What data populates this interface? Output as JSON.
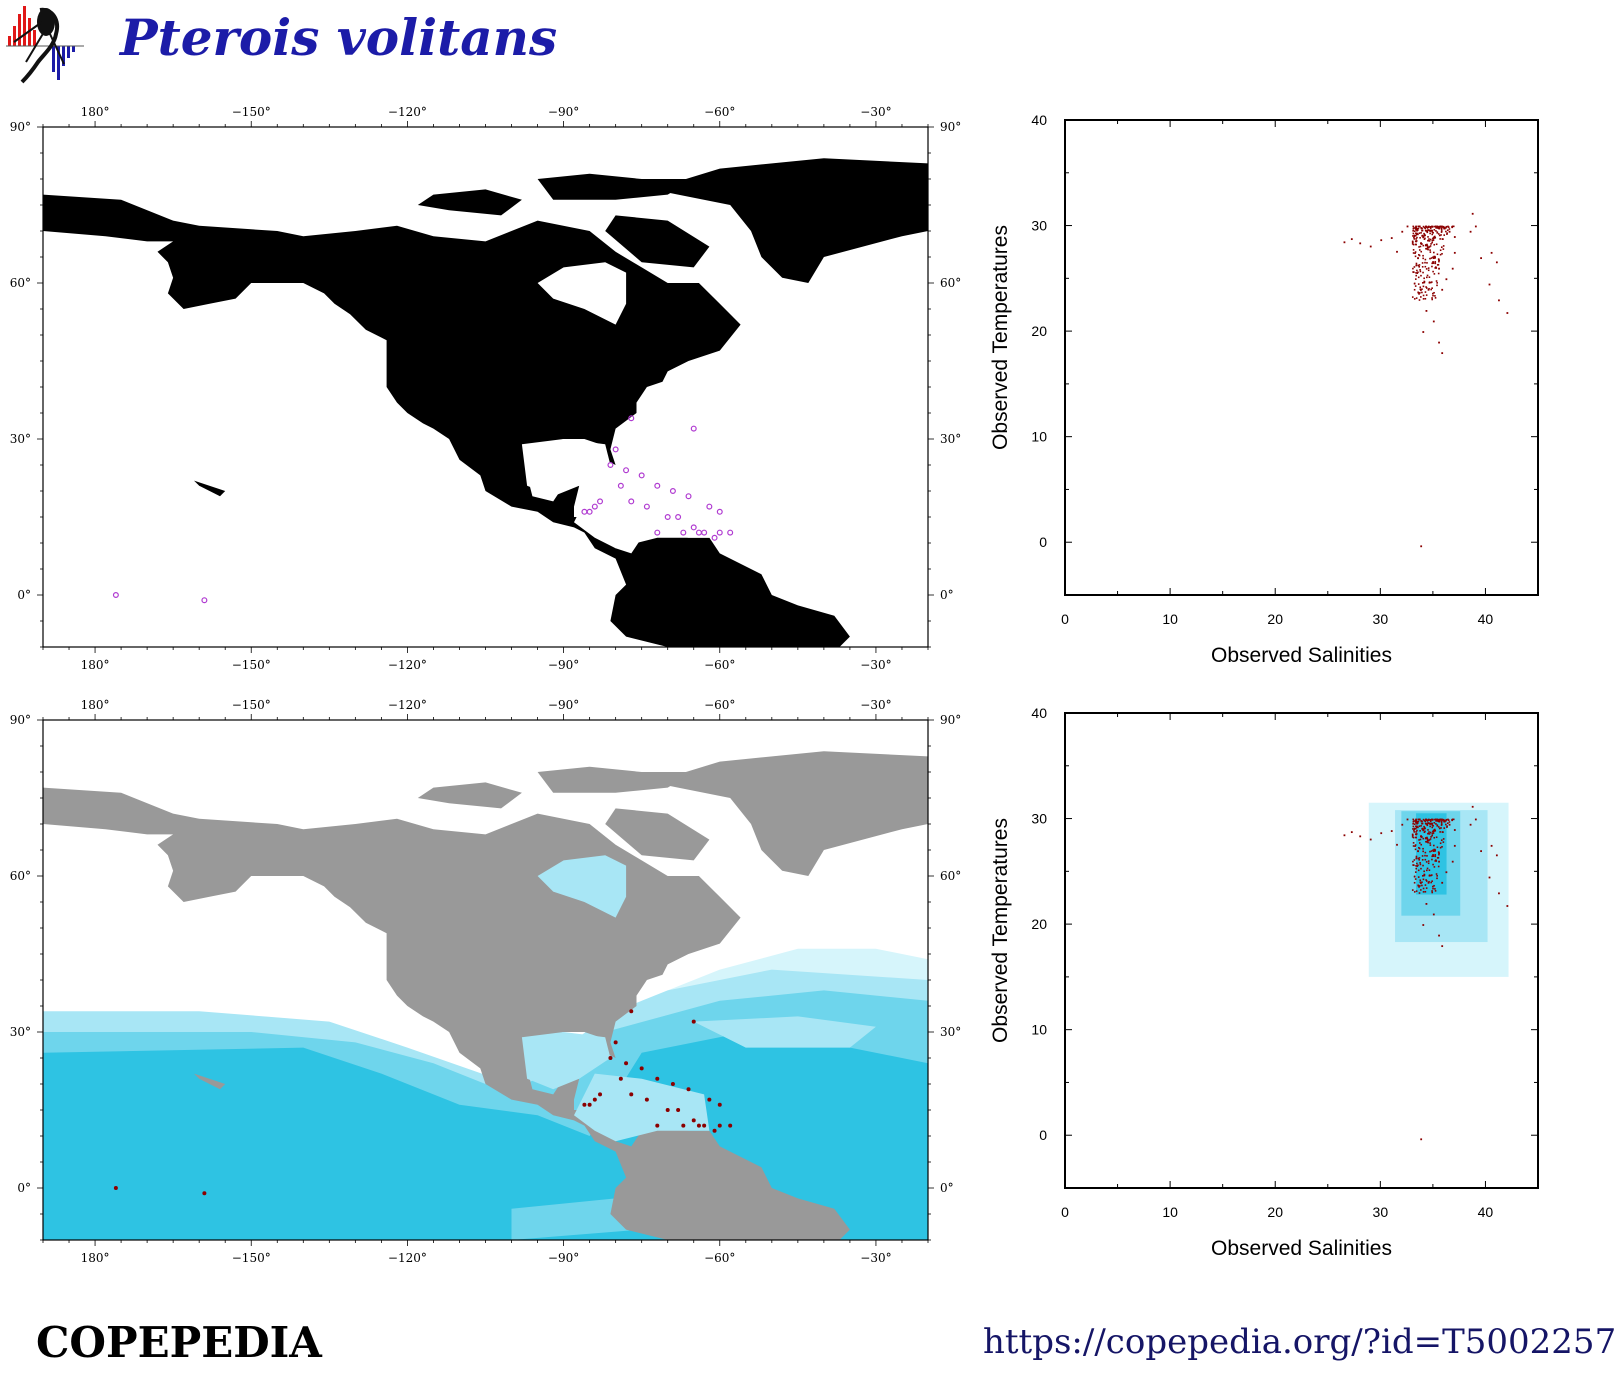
{
  "header": {
    "species_name": "Pterois volitans",
    "logo_icon": "copepedia-logo-icon"
  },
  "footer": {
    "site_name": "COPEPEDIA",
    "url": "https://copepedia.org/?id=T5002257"
  },
  "colors": {
    "land_top": "#000000",
    "land_bottom": "#999999",
    "record_outline": "#b03bd1",
    "record_fill": "#8b0000",
    "habitat_shades": [
      "#d6f5fb",
      "#a8e6f5",
      "#6ed5ec",
      "#2ec3e3"
    ],
    "title": "#1c1ca8"
  },
  "chart_data": [
    {
      "type": "scatter",
      "name": "map-top",
      "projection": "equirectangular",
      "xlim": [
        -190,
        -20
      ],
      "ylim": [
        -10,
        90
      ],
      "x_ticks": [
        180,
        -150,
        -120,
        -90,
        -60,
        -30
      ],
      "x_tick_labels": [
        "180°",
        "−150°",
        "−120°",
        "−90°",
        "−60°",
        "−30°"
      ],
      "y_ticks": [
        0,
        30,
        60,
        90
      ],
      "y_tick_labels": [
        "0°",
        "30°",
        "60°",
        "90°"
      ],
      "points": [
        [
          -176,
          0
        ],
        [
          -159,
          -1
        ],
        [
          -80,
          28
        ],
        [
          -77,
          34
        ],
        [
          -65,
          32
        ],
        [
          -81,
          25
        ],
        [
          -78,
          24
        ],
        [
          -75,
          23
        ],
        [
          -72,
          21
        ],
        [
          -69,
          20
        ],
        [
          -66,
          19
        ],
        [
          -83,
          18
        ],
        [
          -85,
          16
        ],
        [
          -86,
          16
        ],
        [
          -84,
          17
        ],
        [
          -79,
          21
        ],
        [
          -77,
          18
        ],
        [
          -74,
          17
        ],
        [
          -70,
          15
        ],
        [
          -68,
          15
        ],
        [
          -65,
          13
        ],
        [
          -63,
          12
        ],
        [
          -61,
          11
        ],
        [
          -60,
          12
        ],
        [
          -58,
          12
        ],
        [
          -60,
          16
        ],
        [
          -62,
          17
        ],
        [
          -72,
          12
        ],
        [
          -67,
          12
        ],
        [
          -64,
          12
        ]
      ]
    },
    {
      "type": "scatter",
      "name": "map-bottom",
      "projection": "equirectangular",
      "xlim": [
        -190,
        -20
      ],
      "ylim": [
        -10,
        90
      ],
      "x_ticks": [
        180,
        -150,
        -120,
        -90,
        -60,
        -30
      ],
      "x_tick_labels": [
        "180°",
        "−150°",
        "−120°",
        "−90°",
        "−60°",
        "−30°"
      ],
      "y_ticks": [
        0,
        30,
        60,
        90
      ],
      "y_tick_labels": [
        "0°",
        "30°",
        "60°",
        "90°"
      ],
      "points": [
        [
          -176,
          0
        ],
        [
          -159,
          -1
        ],
        [
          -80,
          28
        ],
        [
          -77,
          34
        ],
        [
          -65,
          32
        ],
        [
          -81,
          25
        ],
        [
          -78,
          24
        ],
        [
          -75,
          23
        ],
        [
          -72,
          21
        ],
        [
          -69,
          20
        ],
        [
          -66,
          19
        ],
        [
          -83,
          18
        ],
        [
          -85,
          16
        ],
        [
          -86,
          16
        ],
        [
          -84,
          17
        ],
        [
          -79,
          21
        ],
        [
          -77,
          18
        ],
        [
          -74,
          17
        ],
        [
          -70,
          15
        ],
        [
          -68,
          15
        ],
        [
          -65,
          13
        ],
        [
          -63,
          12
        ],
        [
          -61,
          11
        ],
        [
          -60,
          12
        ],
        [
          -58,
          12
        ],
        [
          -60,
          16
        ],
        [
          -62,
          17
        ],
        [
          -72,
          12
        ],
        [
          -67,
          12
        ],
        [
          -64,
          12
        ]
      ]
    },
    {
      "type": "scatter",
      "name": "ts-top",
      "xlabel": "Observed Salinities",
      "ylabel": "Observed Temperatures",
      "xlim": [
        0,
        45
      ],
      "ylim": [
        -5,
        40
      ],
      "x_ticks": [
        0,
        10,
        20,
        30,
        40
      ],
      "y_ticks": [
        0,
        10,
        20,
        30,
        40
      ],
      "points": [
        [
          26.5,
          28.5
        ],
        [
          27.2,
          28.8
        ],
        [
          28,
          28.4
        ],
        [
          29,
          28.1
        ],
        [
          30,
          28.7
        ],
        [
          31,
          28.9
        ],
        [
          31.5,
          27.6
        ],
        [
          32,
          29.5
        ],
        [
          32.5,
          30
        ],
        [
          33,
          28.5
        ],
        [
          33.5,
          27
        ],
        [
          34,
          29
        ],
        [
          34.5,
          28
        ],
        [
          35,
          27
        ],
        [
          35.2,
          30
        ],
        [
          35.5,
          26
        ],
        [
          35.8,
          24
        ],
        [
          36,
          29.8
        ],
        [
          36.2,
          25
        ],
        [
          34.5,
          24
        ],
        [
          34.3,
          22
        ],
        [
          34,
          20
        ],
        [
          35,
          21
        ],
        [
          35.5,
          19
        ],
        [
          35.8,
          18
        ],
        [
          36.5,
          29.5
        ],
        [
          37,
          29
        ],
        [
          37,
          27.5
        ],
        [
          36.8,
          26
        ],
        [
          38.5,
          29.5
        ],
        [
          38.7,
          31.2
        ],
        [
          39,
          30
        ],
        [
          39.5,
          27
        ],
        [
          40.5,
          27.5
        ],
        [
          41,
          26.6
        ],
        [
          40.3,
          24.5
        ],
        [
          41.2,
          23
        ],
        [
          42,
          21.8
        ],
        [
          33.8,
          -0.3
        ]
      ],
      "dense_region": {
        "x": [
          33,
          37
        ],
        "y": [
          23,
          30
        ]
      }
    },
    {
      "type": "scatter",
      "name": "ts-bottom",
      "xlabel": "Observed Salinities",
      "ylabel": "Observed Temperatures",
      "xlim": [
        0,
        45
      ],
      "ylim": [
        -5,
        40
      ],
      "x_ticks": [
        0,
        10,
        20,
        30,
        40
      ],
      "y_ticks": [
        0,
        10,
        20,
        30,
        40
      ],
      "envelopes": [
        {
          "x": [
            28.9,
            42.2
          ],
          "y": [
            15,
            31.5
          ],
          "level": 0
        },
        {
          "x": [
            31.4,
            40.2
          ],
          "y": [
            18.3,
            30.8
          ],
          "level": 1
        },
        {
          "x": [
            32,
            37.6
          ],
          "y": [
            20.8,
            30.7
          ],
          "level": 2
        },
        {
          "x": [
            33.4,
            36.3
          ],
          "y": [
            22.8,
            30.5
          ],
          "level": 3
        }
      ],
      "points": [
        [
          26.5,
          28.5
        ],
        [
          27.2,
          28.8
        ],
        [
          28,
          28.4
        ],
        [
          29,
          28.1
        ],
        [
          30,
          28.7
        ],
        [
          31,
          28.9
        ],
        [
          31.5,
          27.6
        ],
        [
          32,
          29.5
        ],
        [
          32.5,
          30
        ],
        [
          33,
          28.5
        ],
        [
          33.5,
          27
        ],
        [
          34,
          29
        ],
        [
          34.5,
          28
        ],
        [
          35,
          27
        ],
        [
          35.2,
          30
        ],
        [
          35.5,
          26
        ],
        [
          35.8,
          24
        ],
        [
          36,
          29.8
        ],
        [
          36.2,
          25
        ],
        [
          34.5,
          24
        ],
        [
          34.3,
          22
        ],
        [
          34,
          20
        ],
        [
          35,
          21
        ],
        [
          35.5,
          19
        ],
        [
          35.8,
          18
        ],
        [
          36.5,
          29.5
        ],
        [
          37,
          29
        ],
        [
          37,
          27.5
        ],
        [
          36.8,
          26
        ],
        [
          38.5,
          29.5
        ],
        [
          38.7,
          31.2
        ],
        [
          39,
          30
        ],
        [
          39.5,
          27
        ],
        [
          40.5,
          27.5
        ],
        [
          41,
          26.6
        ],
        [
          40.3,
          24.5
        ],
        [
          41.2,
          23
        ],
        [
          42,
          21.8
        ],
        [
          33.8,
          -0.3
        ]
      ],
      "dense_region": {
        "x": [
          33,
          37
        ],
        "y": [
          23,
          30
        ]
      }
    }
  ]
}
